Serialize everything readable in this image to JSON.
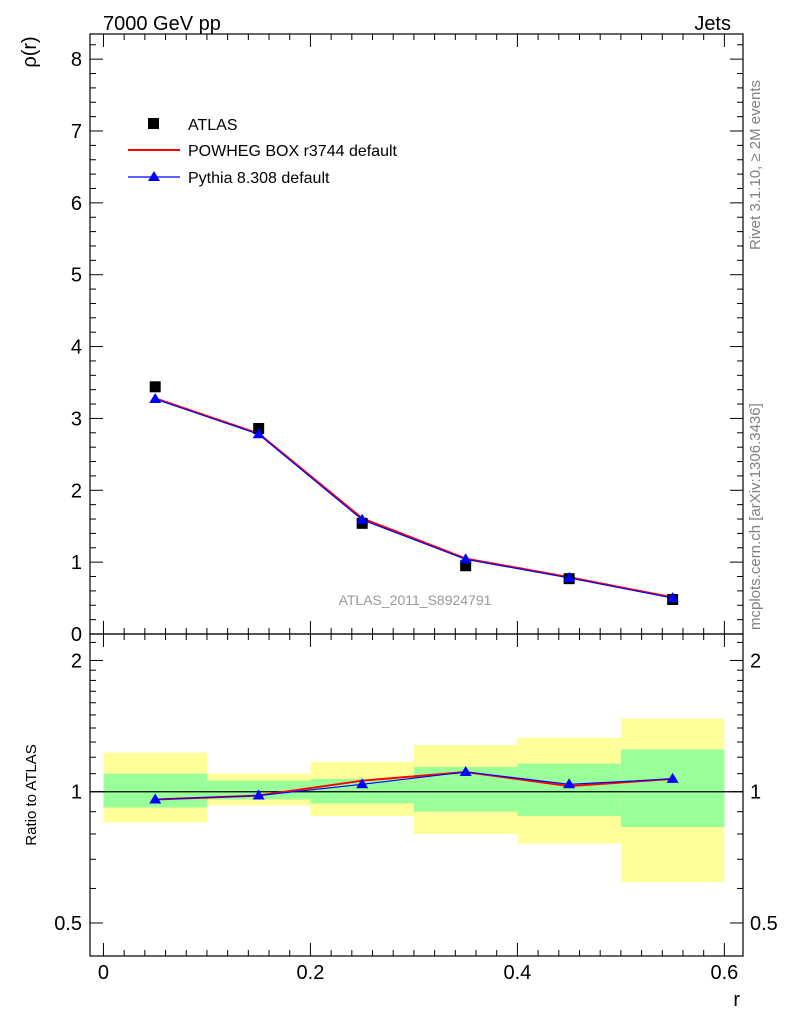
{
  "header": {
    "left_title": "7000 GeV pp",
    "right_title": "Jets"
  },
  "side_text": {
    "rivet": "Rivet 3.1.10, ≥ 2M events",
    "mcplots": "mcplots.cern.ch [arXiv:1306.3436]"
  },
  "analysis_label": "ATLAS_2011_S8924791",
  "colors": {
    "data": "#000000",
    "powheg": "#ff0000",
    "pythia": "#0000ff",
    "band_inner": "#99ff99",
    "band_outer": "#ffff99"
  },
  "chart_data": [
    {
      "type": "line",
      "ylabel": "ρ(r)",
      "xlim": [
        -0.013,
        0.618
      ],
      "ylim": [
        0,
        8.35
      ],
      "yticks": [
        0,
        1,
        2,
        3,
        4,
        5,
        6,
        7,
        8
      ],
      "yticklabels": [
        "0",
        "1",
        "2",
        "3",
        "4",
        "5",
        "6",
        "7",
        "8"
      ],
      "legend_position": "top-left",
      "x": [
        0.05,
        0.15,
        0.25,
        0.35,
        0.45,
        0.55
      ],
      "series": [
        {
          "name": "ATLAS",
          "kind": "markers",
          "values": [
            3.44,
            2.86,
            1.54,
            0.95,
            0.77,
            0.48
          ]
        },
        {
          "name": "POWHEG BOX r3744 default",
          "kind": "line",
          "values": [
            3.28,
            2.79,
            1.61,
            1.05,
            0.79,
            0.51
          ]
        },
        {
          "name": "Pythia 8.308 default",
          "kind": "line+triangles",
          "values": [
            3.27,
            2.78,
            1.59,
            1.04,
            0.78,
            0.5
          ]
        }
      ]
    },
    {
      "type": "line",
      "ylabel": "Ratio to ATLAS",
      "xlabel": "r",
      "xlim": [
        -0.013,
        0.618
      ],
      "ylim": [
        0.42,
        2.3
      ],
      "log_y": true,
      "xticks": [
        0,
        0.2,
        0.4,
        0.6
      ],
      "xticklabels": [
        "0",
        "0.2",
        "0.4",
        "0.6"
      ],
      "yticks": [
        0.5,
        1,
        2
      ],
      "yticklabels": [
        "0.5",
        "1",
        "2"
      ],
      "x_bins": [
        [
          0.0,
          0.1
        ],
        [
          0.1,
          0.2
        ],
        [
          0.2,
          0.3
        ],
        [
          0.3,
          0.4
        ],
        [
          0.4,
          0.5
        ],
        [
          0.5,
          0.6
        ]
      ],
      "band_inner": [
        [
          0.92,
          1.1
        ],
        [
          0.96,
          1.06
        ],
        [
          0.94,
          1.07
        ],
        [
          0.9,
          1.14
        ],
        [
          0.88,
          1.16
        ],
        [
          0.83,
          1.25
        ]
      ],
      "band_outer": [
        [
          0.85,
          1.23
        ],
        [
          0.93,
          1.1
        ],
        [
          0.88,
          1.17
        ],
        [
          0.8,
          1.28
        ],
        [
          0.76,
          1.33
        ],
        [
          0.62,
          1.47
        ]
      ],
      "x": [
        0.05,
        0.15,
        0.25,
        0.35,
        0.45,
        0.55
      ],
      "series": [
        {
          "name": "POWHEG BOX r3744 default",
          "values": [
            0.96,
            0.98,
            1.06,
            1.11,
            1.03,
            1.07
          ]
        },
        {
          "name": "Pythia 8.308 default",
          "values": [
            0.96,
            0.98,
            1.04,
            1.11,
            1.04,
            1.07
          ]
        }
      ]
    }
  ]
}
